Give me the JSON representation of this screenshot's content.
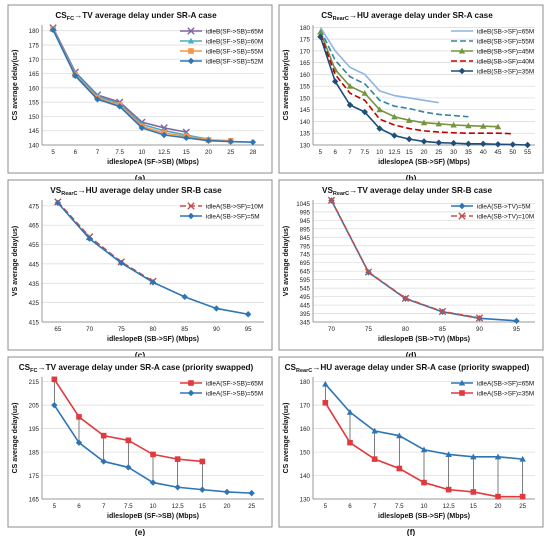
{
  "charts": [
    {
      "id": "a",
      "caption": "(a)",
      "title_main": "CS",
      "title_sub": "FC",
      "title_rest": "→TV average delay under SR-A case",
      "xlabel": "idleslopeA (SF->SB) (Mbps)",
      "ylabel": "CS average delay(us)",
      "yticks": [
        140,
        145,
        150,
        155,
        160,
        165,
        170,
        175,
        180
      ],
      "ylim": [
        140,
        182
      ],
      "categories": [
        "5",
        "6",
        "7",
        "7.5",
        "10",
        "12.5",
        "15",
        "20",
        "25",
        "28"
      ],
      "legend_pos": "top-right",
      "series": [
        {
          "name": "idleB(SF->SB)=65M",
          "color": "#8064a2",
          "dash": "",
          "marker": "x",
          "values": [
            181,
            165.5,
            157.5,
            155,
            148,
            146,
            144.5,
            null,
            null,
            null
          ]
        },
        {
          "name": "idleB(SF->SB)=60M",
          "color": "#4bacc6",
          "dash": "",
          "marker": "triangle",
          "values": [
            180.7,
            165,
            157,
            154.5,
            147.2,
            145,
            143.5,
            142,
            null,
            null
          ]
        },
        {
          "name": "idleB(SF->SB)=55M",
          "color": "#f79646",
          "dash": "",
          "marker": "square",
          "values": [
            180.5,
            164.5,
            156.5,
            154,
            146.5,
            144.2,
            143,
            141.8,
            141.5,
            null
          ]
        },
        {
          "name": "idleB(SF->SB)=52M",
          "color": "#2e75b6",
          "dash": "",
          "marker": "diamond",
          "values": [
            180.3,
            164.2,
            156,
            153.5,
            146,
            143.5,
            142.5,
            141.5,
            141.2,
            141
          ]
        }
      ]
    },
    {
      "id": "b",
      "caption": "(b)",
      "title_main": "CS",
      "title_sub": "RearC",
      "title_rest": "→HU average delay under SR-A case",
      "xlabel": "idleslopeA (SB->SF) (Mbps)",
      "ylabel": "CS average delay(us)",
      "yticks": [
        130,
        135,
        140,
        145,
        150,
        155,
        160,
        165,
        170,
        175,
        180
      ],
      "ylim": [
        130,
        181
      ],
      "categories": [
        "5",
        "6",
        "7",
        "7.5",
        "10",
        "12.5",
        "15",
        "20",
        "25",
        "30",
        "35",
        "40",
        "45",
        "50",
        "55"
      ],
      "legend_pos": "top-right",
      "series": [
        {
          "name": "idleB(SB->SF)=65M",
          "color": "#8eb4e3",
          "dash": "",
          "marker": "line",
          "values": [
            180,
            170,
            163,
            160,
            153,
            151,
            150,
            149,
            148,
            null,
            null,
            null,
            null,
            null,
            null
          ]
        },
        {
          "name": "idleB(SB->SF)=55M",
          "color": "#31859c",
          "dash": "6,3",
          "marker": "line",
          "values": [
            179,
            166,
            159,
            156,
            149,
            146.5,
            145.5,
            144,
            143,
            142.5,
            142,
            null,
            null,
            null,
            null
          ]
        },
        {
          "name": "idleB(SB->SF)=45M",
          "color": "#77933c",
          "dash": "",
          "marker": "triangle",
          "values": [
            178,
            162,
            155,
            152,
            145,
            142,
            140.5,
            139.5,
            139,
            138.5,
            138.2,
            138,
            137.8,
            null,
            null
          ]
        },
        {
          "name": "idleB(SB->SF)=40M",
          "color": "#c00000",
          "dash": "6,3",
          "marker": "line",
          "values": [
            177,
            160,
            152,
            149,
            141,
            138.5,
            137,
            136,
            135.5,
            135.2,
            135,
            135,
            135,
            134.8,
            null
          ]
        },
        {
          "name": "idleB(SB->SF)=35M",
          "color": "#1f4e79",
          "dash": "",
          "marker": "diamond",
          "values": [
            176,
            157,
            147,
            144,
            137,
            134,
            132.5,
            131.5,
            131,
            130.8,
            130.5,
            130.5,
            130.3,
            130.2,
            130
          ]
        }
      ]
    },
    {
      "id": "c",
      "caption": "(c)",
      "title_main": "VS",
      "title_sub": "RearC",
      "title_rest": "→HU average delay under SR-B case",
      "xlabel": "idleslopeB (SB->SF) (Mbps)",
      "ylabel": "VS average delay(us)",
      "yticks": [
        415,
        425,
        435,
        445,
        455,
        465,
        475
      ],
      "ylim": [
        415,
        478
      ],
      "categories": [
        "65",
        "70",
        "75",
        "80",
        "85",
        "90",
        "95"
      ],
      "legend_pos": "top-right",
      "series": [
        {
          "name": "idleA(SB->SF)=10M",
          "color": "#c0504d",
          "dash": "6,3",
          "marker": "x",
          "values": [
            477,
            459,
            446,
            436,
            null,
            null,
            null
          ]
        },
        {
          "name": "idleA(SB->SF)=5M",
          "color": "#2e75b6",
          "dash": "",
          "marker": "diamond",
          "values": [
            476.5,
            458,
            445.5,
            435.5,
            428,
            422,
            419
          ]
        }
      ]
    },
    {
      "id": "d",
      "caption": "(d)",
      "title_main": "VS",
      "title_sub": "RearC",
      "title_rest": "→TV average delay under SR-B case",
      "xlabel": "idleslopeB (SB->TV) (Mbps)",
      "ylabel": "VS average delay(us)",
      "yticks": [
        345,
        395,
        445,
        495,
        545,
        595,
        645,
        695,
        745,
        795,
        845,
        895,
        945,
        995,
        1045
      ],
      "ylim": [
        345,
        1065
      ],
      "categories": [
        "70",
        "75",
        "80",
        "85",
        "90",
        "95"
      ],
      "legend_pos": "top-right",
      "series": [
        {
          "name": "idleA(SB->TV)=5M",
          "color": "#2e75b6",
          "dash": "",
          "marker": "diamond",
          "values": [
            1062,
            638,
            483,
            405,
            367,
            352
          ]
        },
        {
          "name": "idleA(SB->TV)=10M",
          "color": "#c0504d",
          "dash": "6,3",
          "marker": "x",
          "values": [
            1063,
            640,
            485,
            407,
            369,
            null
          ]
        }
      ]
    },
    {
      "id": "e",
      "caption": "(e)",
      "title_main": "CS",
      "title_sub": "FC",
      "title_rest": "→TV average delay under SR-A case (priority swapped)",
      "xlabel": "idleslopeB (SF->SB) (Mbps)",
      "ylabel": "CS average delay(us)",
      "yticks": [
        165,
        175,
        185,
        195,
        205,
        215
      ],
      "ylim": [
        165,
        217
      ],
      "categories": [
        "5",
        "6",
        "7",
        "7.5",
        "10",
        "12.5",
        "15",
        "20",
        "25"
      ],
      "legend_pos": "top-right",
      "droplines": true,
      "series": [
        {
          "name": "idleA(SF->SB)=65M",
          "color": "#e0393e",
          "dash": "",
          "marker": "square",
          "values": [
            216,
            200,
            192,
            190,
            184,
            182,
            181,
            null,
            null
          ]
        },
        {
          "name": "idleA(SF->SB)=55M",
          "color": "#2e75b6",
          "dash": "",
          "marker": "diamond",
          "values": [
            205,
            189,
            181,
            178.5,
            172,
            170,
            169,
            168,
            167.5
          ]
        }
      ]
    },
    {
      "id": "f",
      "caption": "(f)",
      "title_main": "CS",
      "title_sub": "RearC",
      "title_rest": "→HU average delay under SR-A case (priority swapped)",
      "xlabel": "idleslopeB (SB->SF) (Mbps)",
      "ylabel": "CS average delay(us)",
      "yticks": [
        130,
        140,
        150,
        160,
        170,
        180
      ],
      "ylim": [
        130,
        182
      ],
      "categories": [
        "5",
        "6",
        "7",
        "7.5",
        "10",
        "12.5",
        "15",
        "20",
        "25"
      ],
      "legend_pos": "top-right",
      "droplines": true,
      "series": [
        {
          "name": "idleA(SB->SF)=65M",
          "color": "#2e75b6",
          "dash": "",
          "marker": "triangle",
          "values": [
            179,
            167,
            159,
            157,
            151,
            149,
            148,
            148,
            147
          ]
        },
        {
          "name": "idleA(SB->SF)=35M",
          "color": "#e0393e",
          "dash": "",
          "marker": "square",
          "values": [
            171,
            154,
            147,
            143,
            137,
            134,
            133,
            131,
            131
          ]
        }
      ]
    }
  ]
}
